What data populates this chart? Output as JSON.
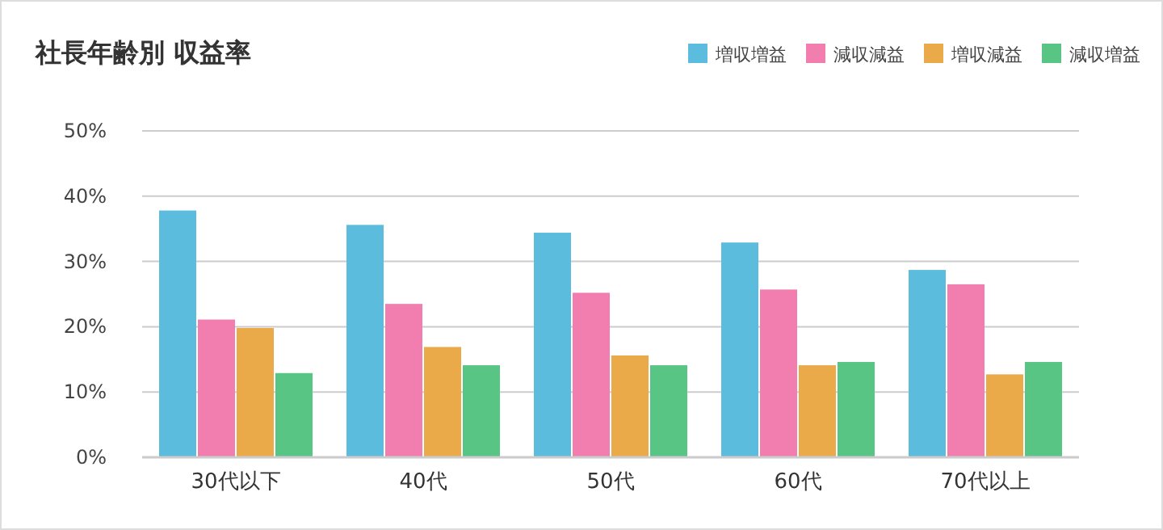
{
  "chart_data": {
    "type": "bar",
    "title": "社長年齢別 収益率",
    "categories": [
      "30代以下",
      "40代",
      "50代",
      "60代",
      "70代以上"
    ],
    "series": [
      {
        "name": "増収増益",
        "color": "#5bbcdd",
        "values": [
          37.8,
          35.6,
          34.4,
          32.9,
          28.7
        ]
      },
      {
        "name": "減収減益",
        "color": "#f27eb0",
        "values": [
          21.1,
          23.5,
          25.2,
          25.7,
          26.5
        ]
      },
      {
        "name": "増収減益",
        "color": "#ebaa4a",
        "values": [
          19.8,
          16.9,
          15.6,
          14.1,
          12.7
        ]
      },
      {
        "name": "減収増益",
        "color": "#58c585",
        "values": [
          12.9,
          14.1,
          14.1,
          14.6,
          14.6
        ]
      }
    ],
    "ylim": [
      0,
      50
    ],
    "yticks": [
      {
        "value": 0,
        "label": "0%"
      },
      {
        "value": 10,
        "label": "10%"
      },
      {
        "value": 20,
        "label": "20%"
      },
      {
        "value": 30,
        "label": "30%"
      },
      {
        "value": 40,
        "label": "40%"
      },
      {
        "value": 50,
        "label": "50%"
      }
    ],
    "grid": "y",
    "legend": "top right"
  }
}
